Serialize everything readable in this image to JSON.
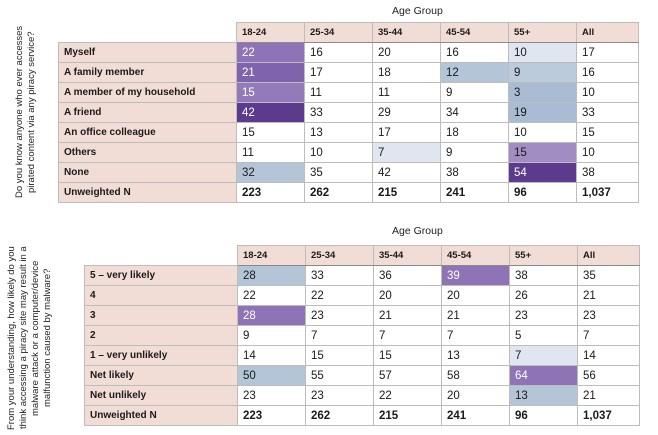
{
  "tables": [
    {
      "group_title": "Age Group",
      "question": "Do you know anyone who ever accesses pirated content via any piracy service?",
      "columns": [
        "18-24",
        "25-34",
        "35-44",
        "45-54",
        "55+",
        "All"
      ],
      "rows": [
        {
          "label": "Myself",
          "values": [
            "22",
            "16",
            "20",
            "16",
            "10",
            "17"
          ],
          "highlights": [
            "#8e74b6",
            "",
            "",
            "",
            "#dfe6f0",
            ""
          ]
        },
        {
          "label": "A family member",
          "values": [
            "21",
            "17",
            "18",
            "12",
            "9",
            "16"
          ],
          "highlights": [
            "#7f63ad",
            "",
            "",
            "#b4c5d8",
            "#bccbdc",
            ""
          ]
        },
        {
          "label": "A member of my household",
          "values": [
            "15",
            "11",
            "11",
            "9",
            "3",
            "10"
          ],
          "highlights": [
            "#937bbb",
            "",
            "",
            "",
            "#a9bcd3",
            ""
          ]
        },
        {
          "label": "A friend",
          "values": [
            "42",
            "33",
            "29",
            "34",
            "19",
            "33"
          ],
          "highlights": [
            "#5c3b8f",
            "",
            "",
            "",
            "#a9bcd3",
            ""
          ]
        },
        {
          "label": "An office colleague",
          "values": [
            "15",
            "13",
            "17",
            "18",
            "10",
            "15"
          ],
          "highlights": [
            "",
            "",
            "",
            "",
            "",
            ""
          ]
        },
        {
          "label": "Others",
          "values": [
            "11",
            "10",
            "7",
            "9",
            "15",
            "10"
          ],
          "highlights": [
            "",
            "",
            "#dfe6f0",
            "",
            "#a28dc3",
            ""
          ]
        },
        {
          "label": "None",
          "values": [
            "32",
            "35",
            "42",
            "38",
            "54",
            "38"
          ],
          "highlights": [
            "#b4c5d8",
            "",
            "",
            "",
            "#5c3b8f",
            ""
          ]
        }
      ],
      "n_row": {
        "label": "Unweighted N",
        "values": [
          "223",
          "262",
          "215",
          "241",
          "96",
          "1,037"
        ]
      }
    },
    {
      "group_title": "Age Group",
      "question": "From your understanding, how likely do you think accessing a piracy site may result in a malware attack or a computer/device malfunction caused by malware?",
      "columns": [
        "18-24",
        "25-34",
        "35-44",
        "45-54",
        "55+",
        "All"
      ],
      "rows": [
        {
          "label": "5 – very likely",
          "values": [
            "28",
            "33",
            "36",
            "39",
            "38",
            "35"
          ],
          "highlights": [
            "#b4c5d8",
            "",
            "",
            "#8e74b6",
            "",
            ""
          ]
        },
        {
          "label": "4",
          "values": [
            "22",
            "22",
            "20",
            "20",
            "26",
            "21"
          ],
          "highlights": [
            "",
            "",
            "",
            "",
            "",
            ""
          ]
        },
        {
          "label": "3",
          "values": [
            "28",
            "23",
            "21",
            "21",
            "23",
            "23"
          ],
          "highlights": [
            "#8e74b6",
            "",
            "",
            "",
            "",
            ""
          ]
        },
        {
          "label": "2",
          "values": [
            "9",
            "7",
            "7",
            "7",
            "5",
            "7"
          ],
          "highlights": [
            "",
            "",
            "",
            "",
            "",
            ""
          ]
        },
        {
          "label": "1 – very unlikely",
          "values": [
            "14",
            "15",
            "15",
            "13",
            "7",
            "14"
          ],
          "highlights": [
            "",
            "",
            "",
            "",
            "#dfe6f0",
            ""
          ]
        },
        {
          "label": "Net likely",
          "values": [
            "50",
            "55",
            "57",
            "58",
            "64",
            "56"
          ],
          "highlights": [
            "#b4c5d8",
            "",
            "",
            "",
            "#8e74b6",
            ""
          ]
        },
        {
          "label": "Net unlikely",
          "values": [
            "23",
            "23",
            "22",
            "20",
            "13",
            "21"
          ],
          "highlights": [
            "",
            "",
            "",
            "",
            "#b4c5d8",
            ""
          ]
        }
      ],
      "n_row": {
        "label": "Unweighted N",
        "values": [
          "223",
          "262",
          "215",
          "241",
          "96",
          "1,037"
        ]
      }
    }
  ]
}
